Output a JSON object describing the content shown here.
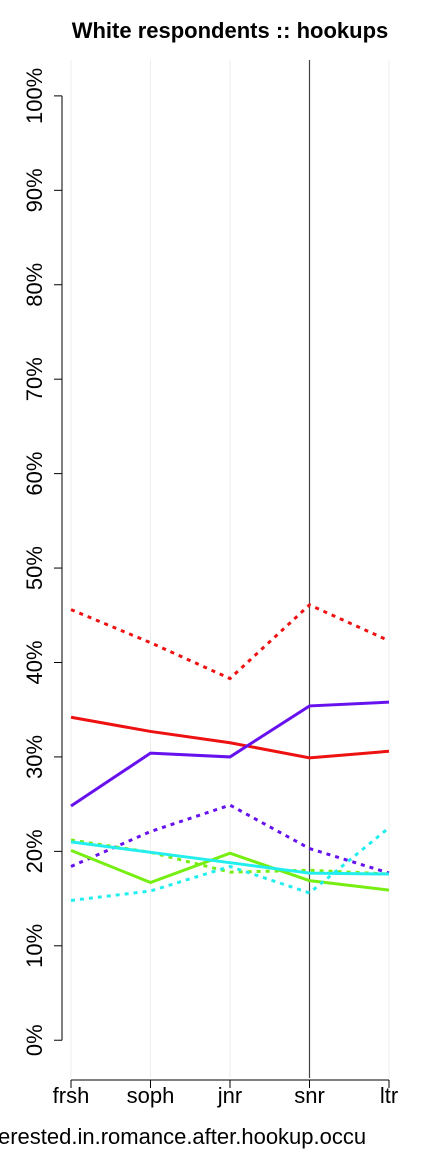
{
  "chart_data": {
    "type": "line",
    "title": "White respondents :: hookups",
    "x_label": "erested.in.romance.after.hookup.occu",
    "categories": [
      "frsh",
      "soph",
      "jnr",
      "snr",
      "ltr"
    ],
    "ylim": [
      -4,
      103.8
    ],
    "yticks": [
      {
        "value": 0,
        "label": "0%"
      },
      {
        "value": 10,
        "label": "10%"
      },
      {
        "value": 20,
        "label": "20%"
      },
      {
        "value": 30,
        "label": "30%"
      },
      {
        "value": 40,
        "label": "40%"
      },
      {
        "value": 50,
        "label": "50%"
      },
      {
        "value": 60,
        "label": "60%"
      },
      {
        "value": 70,
        "label": "70%"
      },
      {
        "value": 80,
        "label": "80%"
      },
      {
        "value": 90,
        "label": "90%"
      },
      {
        "value": 100,
        "label": "100%"
      }
    ],
    "grid": true,
    "highlight_category": "snr",
    "series": [
      {
        "color": "#ee1111",
        "dashed": false,
        "values": [
          34.2,
          32.7,
          31.5,
          29.9,
          30.6
        ]
      },
      {
        "color": "#ee1111",
        "dashed": true,
        "values": [
          45.6,
          42.1,
          38.3,
          46.1,
          42.3
        ]
      },
      {
        "color": "#6611ee",
        "dashed": false,
        "values": [
          24.8,
          30.4,
          30.0,
          35.4,
          35.8
        ]
      },
      {
        "color": "#6611ee",
        "dashed": true,
        "values": [
          18.4,
          22.1,
          24.9,
          20.3,
          17.7
        ]
      },
      {
        "color": "#77ee11",
        "dashed": false,
        "values": [
          20.1,
          16.7,
          19.8,
          16.9,
          15.9
        ]
      },
      {
        "color": "#77ee11",
        "dashed": true,
        "values": [
          21.2,
          19.9,
          17.8,
          18.0,
          17.6
        ]
      },
      {
        "color": "#22eeee",
        "dashed": false,
        "values": [
          21.0,
          19.9,
          18.8,
          17.7,
          17.6
        ]
      },
      {
        "color": "#22eeee",
        "dashed": true,
        "values": [
          14.8,
          15.8,
          18.4,
          15.6,
          22.5
        ]
      }
    ]
  }
}
